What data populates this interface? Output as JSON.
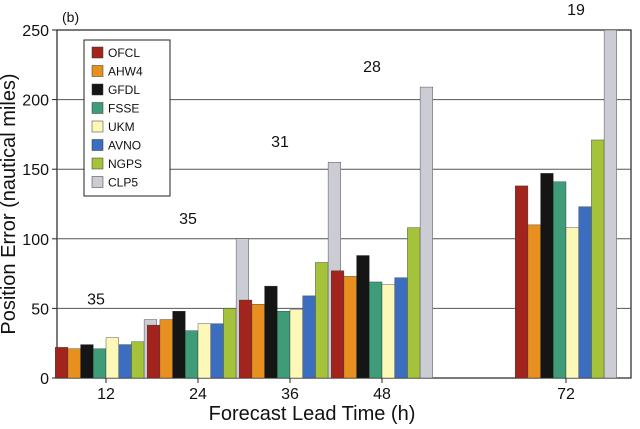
{
  "chart_data": {
    "type": "bar",
    "panel_label": "(b)",
    "xlabel": "Forecast Lead Time (h)",
    "ylabel": "Position Error (nautical miles)",
    "ylim": [
      0,
      250
    ],
    "yticks": [
      0,
      50,
      100,
      150,
      200,
      250
    ],
    "grid": true,
    "legend_position": "top-left",
    "categories": [
      "12",
      "24",
      "36",
      "48",
      "72"
    ],
    "case_counts": [
      "35",
      "35",
      "31",
      "28",
      "19"
    ],
    "series": [
      {
        "name": "OFCL",
        "color": "#a3241d",
        "values": [
          22,
          38,
          56,
          77,
          138
        ]
      },
      {
        "name": "AHW4",
        "color": "#e8901f",
        "values": [
          21,
          42,
          53,
          73,
          110
        ]
      },
      {
        "name": "GFDL",
        "color": "#151515",
        "values": [
          24,
          48,
          66,
          88,
          147
        ]
      },
      {
        "name": "FSSE",
        "color": "#3e9c78",
        "values": [
          21,
          34,
          48,
          69,
          141
        ]
      },
      {
        "name": "UKM",
        "color": "#fdf7b8",
        "values": [
          29,
          39,
          49,
          67,
          108
        ]
      },
      {
        "name": "AVNO",
        "color": "#3b6dc0",
        "values": [
          24,
          39,
          59,
          72,
          123
        ]
      },
      {
        "name": "NGPS",
        "color": "#a5c23b",
        "values": [
          26,
          50,
          83,
          108,
          171
        ]
      },
      {
        "name": "CLP5",
        "color": "#cccdd4",
        "values": [
          42,
          100,
          155,
          209,
          250
        ]
      }
    ]
  }
}
